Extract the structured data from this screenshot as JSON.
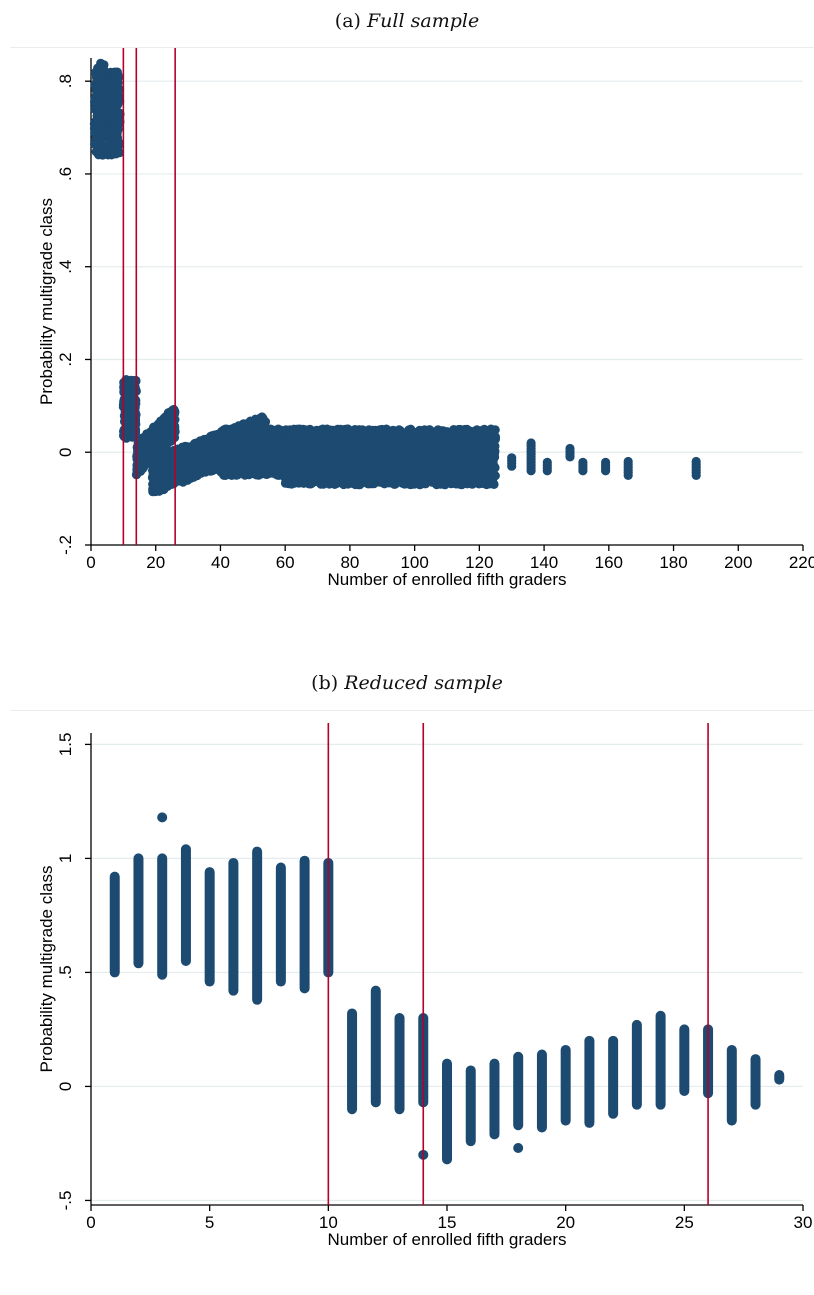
{
  "panels": {
    "a": {
      "label": "(a)",
      "title": "Full sample"
    },
    "b": {
      "label": "(b)",
      "title": "Reduced sample"
    }
  },
  "colors": {
    "points": "#1c4a70",
    "cutoff_lines": "#b3002d",
    "grid": "#e4ecee"
  },
  "chart_data": [
    {
      "type": "scatter",
      "title": "Full sample",
      "xlabel": "Number of enrolled fifth graders",
      "ylabel": "Probability multigrade class",
      "xlim": [
        0,
        220
      ],
      "ylim": [
        -0.2,
        0.85
      ],
      "xticks": [
        0,
        20,
        40,
        60,
        80,
        100,
        120,
        140,
        160,
        180,
        200,
        220
      ],
      "xtick_labels": [
        "0",
        "20",
        "40",
        "60",
        "80",
        "100",
        "120",
        "140",
        "160",
        "180",
        "200",
        "220"
      ],
      "yticks": [
        -0.2,
        0,
        0.2,
        0.4,
        0.6,
        0.8
      ],
      "ytick_labels": [
        "-.2",
        "0",
        ".2",
        ".4",
        ".6",
        ".8"
      ],
      "grid": true,
      "vlines": [
        10,
        14,
        26
      ],
      "point_groups": [
        {
          "x": [
            1,
            9
          ],
          "y_min": 0.64,
          "y_max": 0.82
        },
        {
          "x": [
            2,
            4
          ],
          "y_min": 0.7,
          "y_max": 0.84
        },
        {
          "x": [
            10,
            14
          ],
          "y_min": 0.03,
          "y_max": 0.16
        },
        {
          "x": [
            14,
            26
          ],
          "y_min": -0.05,
          "y_max": 0.1,
          "slope": "up"
        },
        {
          "x": [
            19,
            54
          ],
          "y_min": -0.09,
          "y_max": 0.08,
          "slope": "up"
        },
        {
          "x": [
            40,
            85
          ],
          "y_min": -0.05,
          "y_max": 0.05
        },
        {
          "x": [
            60,
            125
          ],
          "y_min": -0.07,
          "y_max": 0.05
        }
      ],
      "sparse_points": [
        {
          "x": 130,
          "y_min": -0.03,
          "y_max": -0.01
        },
        {
          "x": 136,
          "y_min": -0.04,
          "y_max": 0.02
        },
        {
          "x": 141,
          "y_min": -0.04,
          "y_max": -0.02
        },
        {
          "x": 148,
          "y_min": -0.01,
          "y_max": 0.01
        },
        {
          "x": 152,
          "y_min": -0.04,
          "y_max": -0.02
        },
        {
          "x": 159,
          "y_min": -0.04,
          "y_max": -0.02
        },
        {
          "x": 166,
          "y_min": -0.05,
          "y_max": -0.02
        },
        {
          "x": 187,
          "y_min": -0.05,
          "y_max": -0.02
        }
      ]
    },
    {
      "type": "scatter",
      "title": "Reduced sample",
      "xlabel": "Number of enrolled fifth graders",
      "ylabel": "Probability multigrade class",
      "xlim": [
        0,
        30
      ],
      "ylim": [
        -0.52,
        1.55
      ],
      "xticks": [
        0,
        5,
        10,
        15,
        20,
        25,
        30
      ],
      "xtick_labels": [
        "0",
        "5",
        "10",
        "15",
        "20",
        "25",
        "30"
      ],
      "yticks": [
        -0.5,
        0,
        0.5,
        1,
        1.5
      ],
      "ytick_labels": [
        "-.5",
        "0",
        ".5",
        "1",
        "1.5"
      ],
      "grid": true,
      "vlines": [
        10,
        14,
        26
      ],
      "columns": [
        {
          "x": 1,
          "y_min": 0.5,
          "y_max": 0.92
        },
        {
          "x": 2,
          "y_min": 0.54,
          "y_max": 1.0
        },
        {
          "x": 3,
          "y_min": 0.49,
          "y_max": 1.0,
          "outlier": 1.18
        },
        {
          "x": 4,
          "y_min": 0.55,
          "y_max": 1.04
        },
        {
          "x": 5,
          "y_min": 0.46,
          "y_max": 0.94
        },
        {
          "x": 6,
          "y_min": 0.42,
          "y_max": 0.98
        },
        {
          "x": 7,
          "y_min": 0.38,
          "y_max": 1.03
        },
        {
          "x": 8,
          "y_min": 0.46,
          "y_max": 0.96
        },
        {
          "x": 9,
          "y_min": 0.43,
          "y_max": 0.99
        },
        {
          "x": 10,
          "y_min": 0.5,
          "y_max": 0.98
        },
        {
          "x": 11,
          "y_min": -0.1,
          "y_max": 0.32
        },
        {
          "x": 12,
          "y_min": -0.07,
          "y_max": 0.42
        },
        {
          "x": 13,
          "y_min": -0.1,
          "y_max": 0.3
        },
        {
          "x": 14,
          "y_min": -0.07,
          "y_max": 0.3,
          "outlier": -0.3
        },
        {
          "x": 15,
          "y_min": -0.32,
          "y_max": 0.1
        },
        {
          "x": 16,
          "y_min": -0.24,
          "y_max": 0.07
        },
        {
          "x": 17,
          "y_min": -0.21,
          "y_max": 0.1
        },
        {
          "x": 18,
          "y_min": -0.17,
          "y_max": 0.13,
          "outlier": -0.27
        },
        {
          "x": 19,
          "y_min": -0.18,
          "y_max": 0.14
        },
        {
          "x": 20,
          "y_min": -0.15,
          "y_max": 0.16
        },
        {
          "x": 21,
          "y_min": -0.16,
          "y_max": 0.2
        },
        {
          "x": 22,
          "y_min": -0.12,
          "y_max": 0.2
        },
        {
          "x": 23,
          "y_min": -0.08,
          "y_max": 0.27
        },
        {
          "x": 24,
          "y_min": -0.08,
          "y_max": 0.31
        },
        {
          "x": 25,
          "y_min": -0.02,
          "y_max": 0.25
        },
        {
          "x": 26,
          "y_min": -0.03,
          "y_max": 0.25
        },
        {
          "x": 27,
          "y_min": -0.15,
          "y_max": 0.16
        },
        {
          "x": 28,
          "y_min": -0.08,
          "y_max": 0.12
        },
        {
          "x": 29,
          "y_min": 0.03,
          "y_max": 0.05
        }
      ]
    }
  ]
}
